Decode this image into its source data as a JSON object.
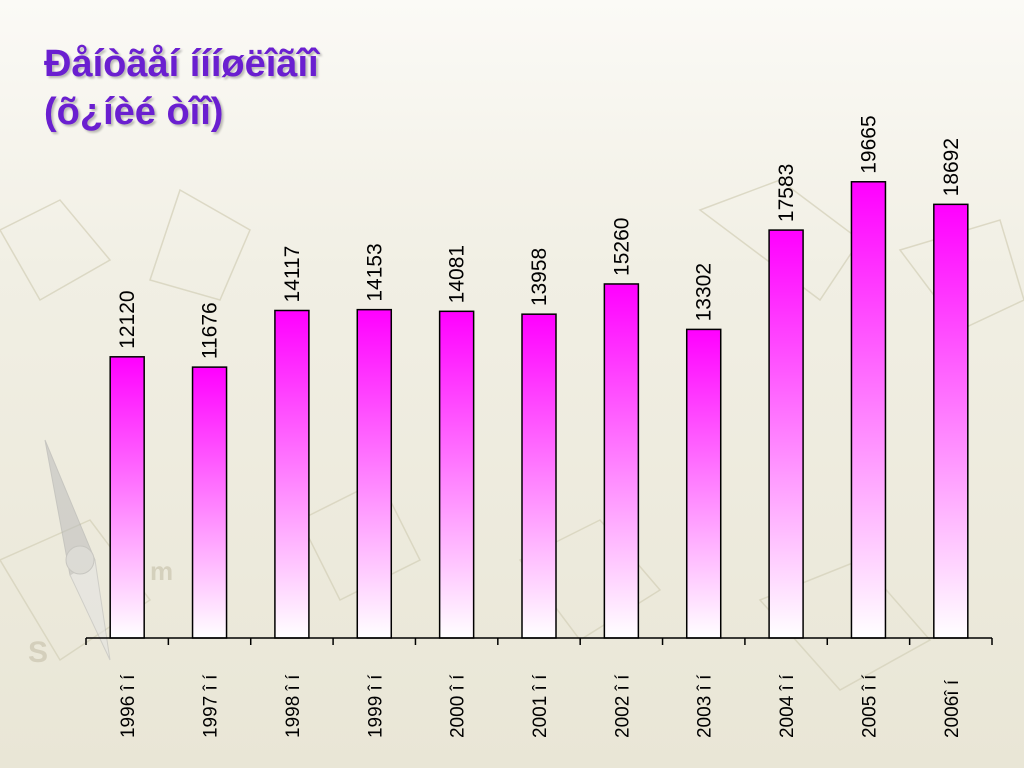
{
  "title": {
    "line1": "Ðåíòãåí íííøëîãîî",
    "line2": "(õ¿íèé òîî)"
  },
  "colors": {
    "title": "#6a1fd0",
    "bar_top": "#ff00ff",
    "bar_bottom": "#ffffff"
  },
  "chart_data": {
    "type": "bar",
    "categories": [
      "1996 î í",
      "1997 î í",
      "1998 î í",
      "1999 î í",
      "2000 î í",
      "2001 î í",
      "2002 î í",
      "2003 î í",
      "2004 î í",
      "2005 î í",
      "2006î í"
    ],
    "values": [
      12120,
      11676,
      14117,
      14153,
      14081,
      13958,
      15260,
      13302,
      17583,
      19665,
      18692
    ],
    "data_labels": [
      "12120",
      "11676",
      "14117",
      "14153",
      "14081",
      "13958",
      "15260",
      "13302",
      "17583",
      "19665",
      "18692"
    ],
    "title": "",
    "xlabel": "",
    "ylabel": "",
    "ylim": [
      0,
      20000
    ],
    "grid": false,
    "legend": "none"
  }
}
